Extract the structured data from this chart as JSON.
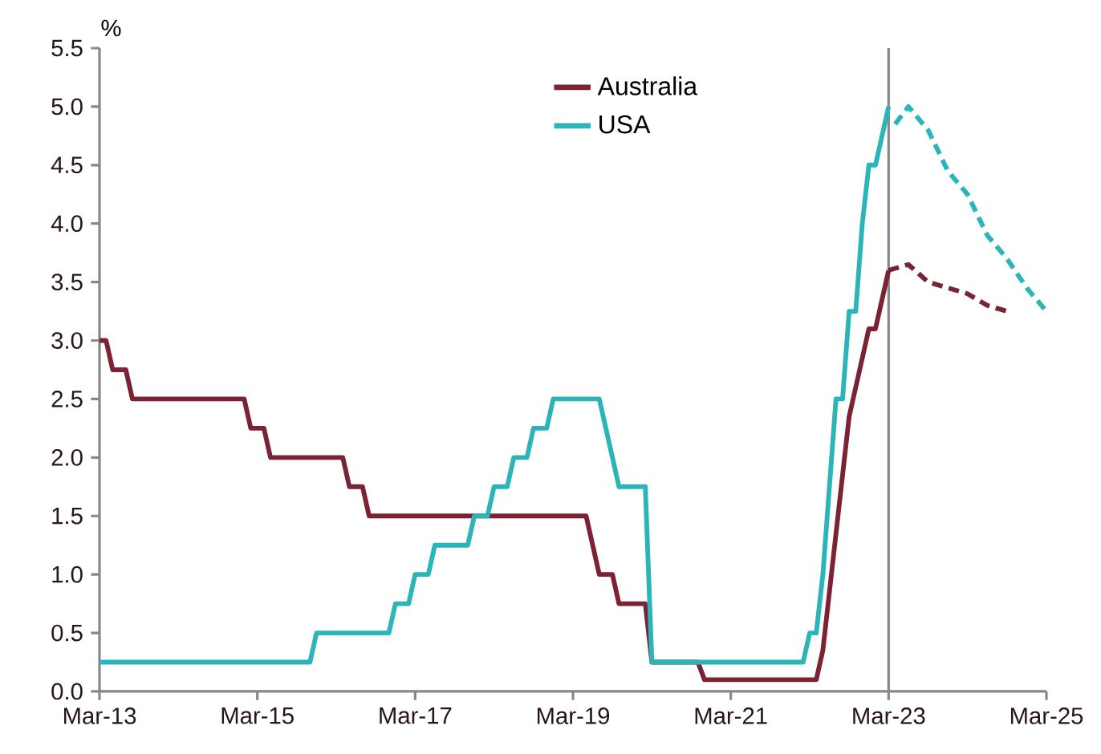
{
  "chart_data": {
    "type": "line",
    "ylabel": "%",
    "xlim": [
      "2013-03",
      "2025-03"
    ],
    "xticks": [
      {
        "value": "2013-03",
        "label": "Mar-13"
      },
      {
        "value": "2015-03",
        "label": "Mar-15"
      },
      {
        "value": "2017-03",
        "label": "Mar-17"
      },
      {
        "value": "2019-03",
        "label": "Mar-19"
      },
      {
        "value": "2021-03",
        "label": "Mar-21"
      },
      {
        "value": "2023-03",
        "label": "Mar-23"
      },
      {
        "value": "2025-03",
        "label": "Mar-25"
      }
    ],
    "ylim": [
      0,
      5.5
    ],
    "yticks": [
      {
        "value": 0,
        "label": "0.0"
      },
      0.5,
      {
        "value": 1,
        "label": "1.0"
      },
      1.5,
      {
        "value": 2,
        "label": "2.0"
      },
      2.5,
      {
        "value": 3,
        "label": "3.0"
      },
      3.5,
      {
        "value": 4,
        "label": "4.0"
      },
      4.5,
      {
        "value": 5,
        "label": "5.0"
      },
      5.5
    ],
    "legend": "top",
    "grid": false,
    "ref_lines": [
      {
        "axis": "x",
        "value": "2023-03",
        "color": "#888888"
      }
    ],
    "series": [
      {
        "name": "Australia",
        "color": "#7b2335",
        "line_style": "solid",
        "x": [
          "2013-03",
          "2013-04",
          "2013-05",
          "2013-07",
          "2013-08",
          "2015-01",
          "2015-02",
          "2015-04",
          "2015-05",
          "2016-04",
          "2016-05",
          "2016-07",
          "2016-08",
          "2019-05",
          "2019-07",
          "2019-09",
          "2019-10",
          "2020-02",
          "2020-03",
          "2020-10",
          "2020-11",
          "2022-04",
          "2022-05",
          "2022-06",
          "2022-07",
          "2022-08",
          "2022-09",
          "2022-10",
          "2022-11",
          "2022-12",
          "2023-01",
          "2023-02",
          "2023-03"
        ],
        "values": [
          3.0,
          3.0,
          2.75,
          2.75,
          2.5,
          2.5,
          2.25,
          2.25,
          2.0,
          2.0,
          1.75,
          1.75,
          1.5,
          1.5,
          1.0,
          1.0,
          0.75,
          0.75,
          0.25,
          0.25,
          0.1,
          0.1,
          0.35,
          0.85,
          1.35,
          1.85,
          2.35,
          2.6,
          2.85,
          3.1,
          3.1,
          3.35,
          3.6
        ]
      },
      {
        "name": "USA",
        "color": "#2cb5b8",
        "line_style": "solid",
        "x": [
          "2013-03",
          "2015-11",
          "2015-12",
          "2016-11",
          "2016-12",
          "2017-02",
          "2017-03",
          "2017-05",
          "2017-06",
          "2017-11",
          "2017-12",
          "2018-02",
          "2018-03",
          "2018-05",
          "2018-06",
          "2018-08",
          "2018-09",
          "2018-11",
          "2018-12",
          "2019-07",
          "2019-08",
          "2019-09",
          "2019-10",
          "2020-02",
          "2020-03",
          "2022-02",
          "2022-03",
          "2022-04",
          "2022-05",
          "2022-06",
          "2022-07",
          "2022-08",
          "2022-09",
          "2022-10",
          "2022-11",
          "2022-12",
          "2023-01",
          "2023-02",
          "2023-03"
        ],
        "values": [
          0.25,
          0.25,
          0.5,
          0.5,
          0.75,
          0.75,
          1.0,
          1.0,
          1.25,
          1.25,
          1.5,
          1.5,
          1.75,
          1.75,
          2.0,
          2.0,
          2.25,
          2.25,
          2.5,
          2.5,
          2.25,
          2.0,
          1.75,
          1.75,
          0.25,
          0.25,
          0.5,
          0.5,
          1.0,
          1.75,
          2.5,
          2.5,
          3.25,
          3.25,
          4.0,
          4.5,
          4.5,
          4.75,
          5.0
        ]
      },
      {
        "color": "#7b2335",
        "line_style": "dashed",
        "x": [
          "2023-03",
          "2023-06",
          "2023-09",
          "2023-12",
          "2024-03",
          "2024-06",
          "2024-09"
        ],
        "values": [
          3.6,
          3.65,
          3.5,
          3.45,
          3.4,
          3.3,
          3.25
        ]
      },
      {
        "color": "#2cb5b8",
        "line_style": "dashed",
        "x": [
          "2023-04",
          "2023-06",
          "2023-09",
          "2023-12",
          "2024-03",
          "2024-06",
          "2024-09",
          "2024-12",
          "2025-03"
        ],
        "values": [
          4.85,
          5.0,
          4.8,
          4.45,
          4.25,
          3.9,
          3.7,
          3.45,
          3.25
        ]
      }
    ]
  }
}
